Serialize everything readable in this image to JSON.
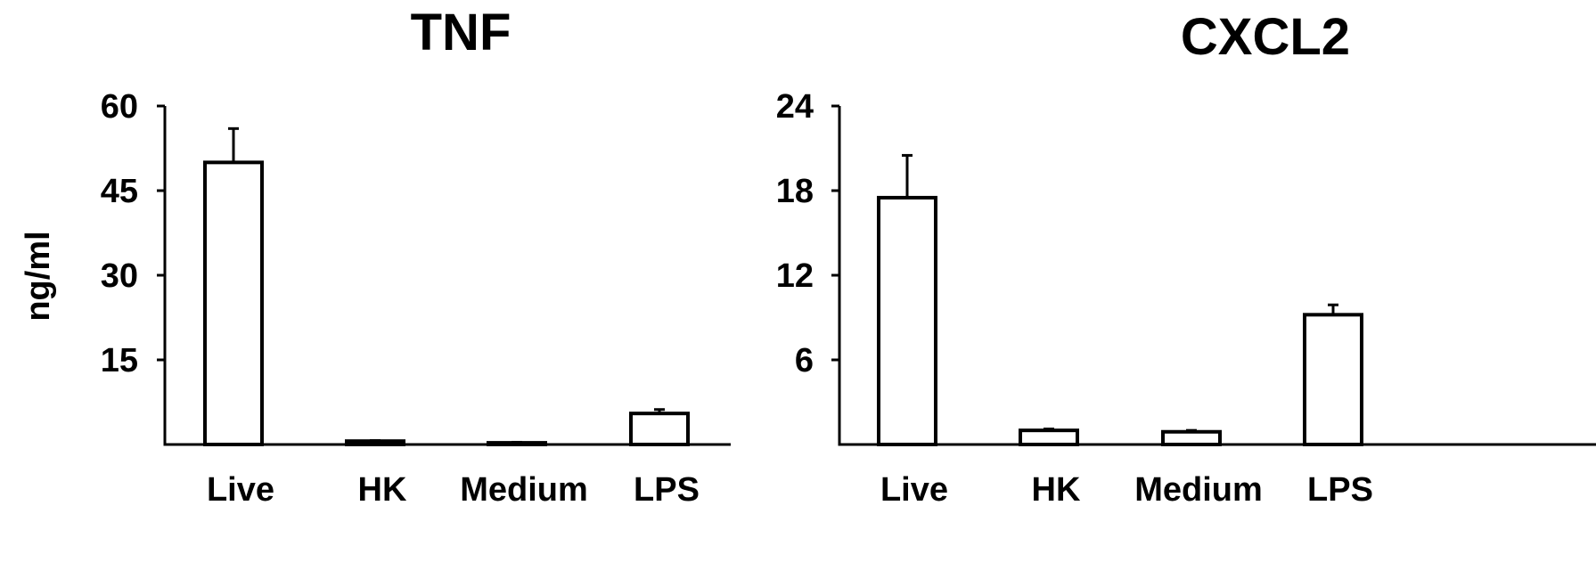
{
  "chart_data": [
    {
      "type": "bar",
      "title": "TNF",
      "ylabel": "ng/ml",
      "xlabel": "",
      "categories": [
        "Live",
        "HK",
        "Medium",
        "LPS"
      ],
      "values": [
        50,
        0.6,
        0.3,
        5.5
      ],
      "error": [
        6,
        0.1,
        0.1,
        0.7
      ],
      "ylim": [
        0,
        60
      ],
      "yticks": [
        15,
        30,
        45,
        60
      ],
      "ytick_labels": [
        "15",
        "30",
        "45",
        "60"
      ],
      "grid": false,
      "legend": "none"
    },
    {
      "type": "bar",
      "title": "CXCL2",
      "ylabel": "",
      "xlabel": "",
      "categories": [
        "Live",
        "HK",
        "Medium",
        "LPS"
      ],
      "values": [
        17.5,
        1,
        0.9,
        9.2
      ],
      "error": [
        3,
        0.1,
        0.1,
        0.7
      ],
      "ylim": [
        0,
        24
      ],
      "yticks": [
        6,
        12,
        18,
        24
      ],
      "ytick_labels": [
        "6",
        "12",
        "18",
        "24"
      ],
      "grid": false,
      "legend": "none"
    }
  ],
  "colors": {
    "bar_fill": "#ffffff",
    "stroke": "#000000"
  }
}
